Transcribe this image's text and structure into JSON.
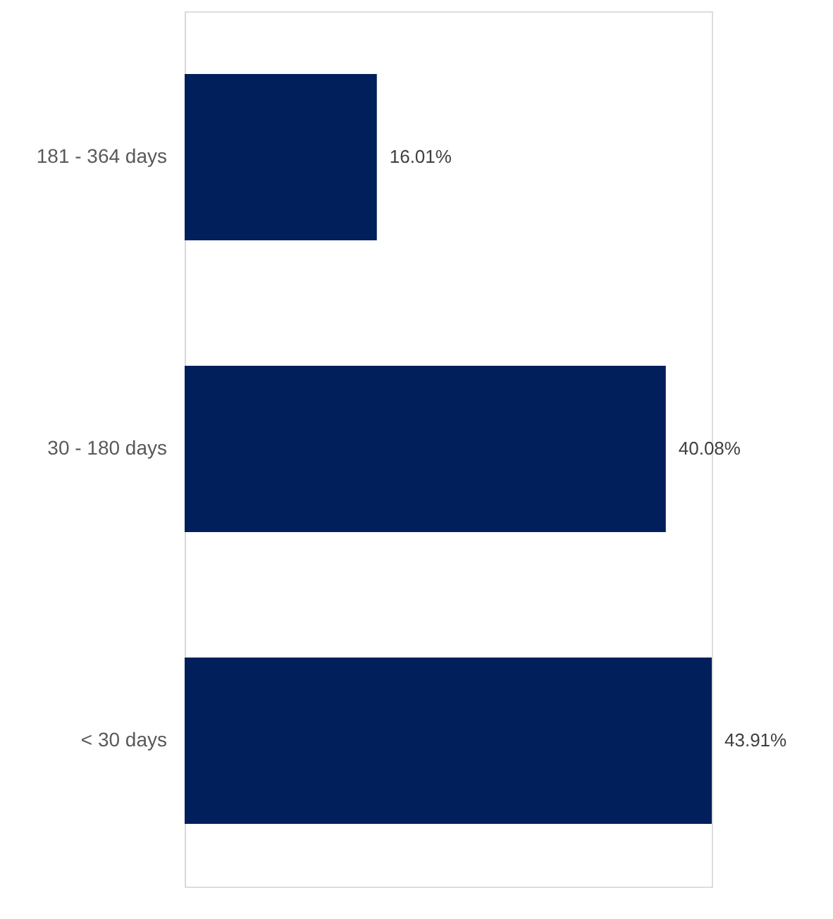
{
  "chart_data": {
    "type": "bar",
    "orientation": "horizontal",
    "categories": [
      "181 - 364 days",
      "30 - 180 days",
      "< 30 days"
    ],
    "values": [
      16.01,
      40.08,
      43.91
    ],
    "value_labels": [
      "16.01%",
      "40.08%",
      "43.91%"
    ],
    "color": "#001f5b"
  }
}
